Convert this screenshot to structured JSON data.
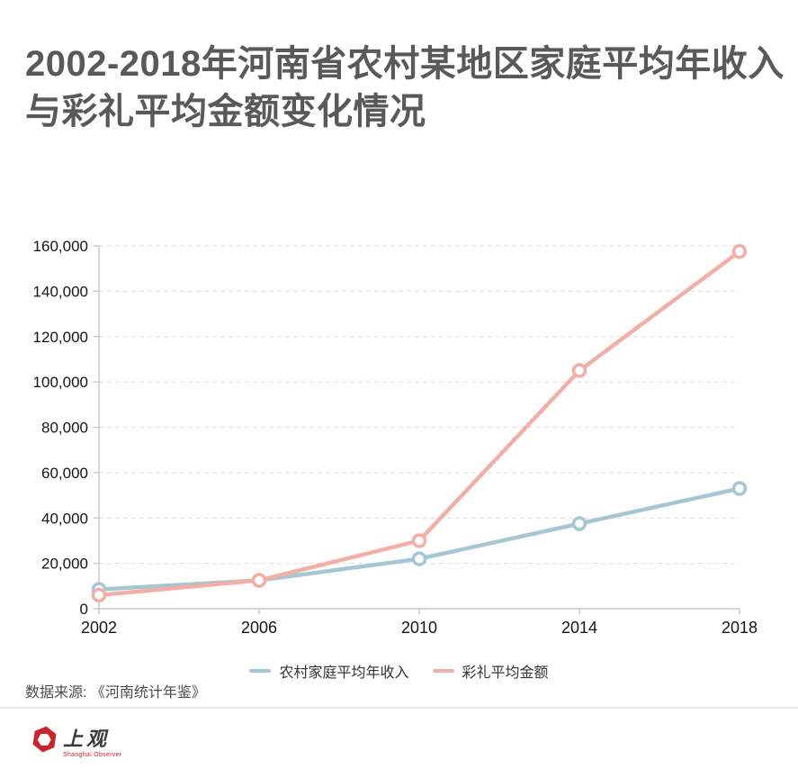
{
  "chart_data": {
    "type": "line",
    "title": "2002-2018年河南省农村某地区家庭平均年收入与彩礼平均金额变化情况",
    "categories": [
      "2002",
      "2006",
      "2010",
      "2014",
      "2018"
    ],
    "series": [
      {
        "name": "农村家庭平均年收入",
        "color": "#a5c7d4",
        "values": [
          8500,
          12500,
          22000,
          37500,
          53000
        ]
      },
      {
        "name": "彩礼平均金额",
        "color": "#f3aea6",
        "values": [
          6000,
          12500,
          30000,
          105000,
          157500
        ]
      }
    ],
    "xlabel": "",
    "ylabel": "",
    "ylim": [
      0,
      160000
    ],
    "ytick_step": 20000,
    "grid": "horizontal-dashed",
    "legend_position": "bottom",
    "grid_color": "#dedede",
    "axis_color": "#c9c9c9",
    "tick_label_color": "#141414"
  },
  "footer": {
    "source": "数据来源: 《河南统计年鉴》",
    "logo_text": "上观",
    "logo_subtext": "Shanghai Observer",
    "logo_color": "#c9252d"
  }
}
